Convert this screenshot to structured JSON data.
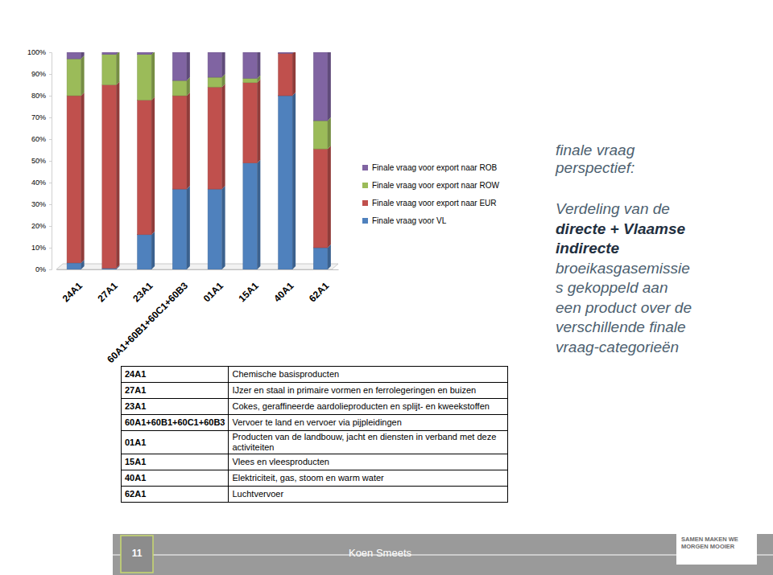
{
  "chart_data": {
    "type": "bar",
    "stacked": true,
    "grid": false,
    "legend": "right",
    "categories": [
      "24A1",
      "27A1",
      "23A1",
      "60A1+60B1+60C1+60B3",
      "01A1",
      "15A1",
      "40A1",
      "62A1"
    ],
    "series": [
      {
        "name": "Finale vraag voor VL",
        "color": "#4f81bd",
        "values": [
          3,
          0.5,
          16,
          37,
          37,
          49,
          80,
          10
        ]
      },
      {
        "name": "Finale vraag voor export naar EUR",
        "color": "#c0504d",
        "values": [
          77,
          84.5,
          62,
          43,
          47,
          37,
          19.5,
          45.5
        ]
      },
      {
        "name": "Finale vraag voor export naar ROW",
        "color": "#9bbb59",
        "values": [
          17,
          14,
          21,
          7,
          4.5,
          2,
          0,
          13
        ]
      },
      {
        "name": "Finale vraag voor export naar ROB",
        "color": "#8064a2",
        "values": [
          3,
          1,
          1,
          13,
          11.5,
          12,
          0.5,
          31.5
        ]
      }
    ],
    "ylim": [
      0,
      100
    ],
    "yticks": [
      {
        "value": 0,
        "label": "0%"
      },
      {
        "value": 10,
        "label": "10%"
      },
      {
        "value": 20,
        "label": "20%"
      },
      {
        "value": 30,
        "label": "30%"
      },
      {
        "value": 40,
        "label": "40%"
      },
      {
        "value": 50,
        "label": "50%"
      },
      {
        "value": 60,
        "label": "60%"
      },
      {
        "value": 70,
        "label": "70%"
      },
      {
        "value": 80,
        "label": "80%"
      },
      {
        "value": 90,
        "label": "90%"
      },
      {
        "value": 100,
        "label": "100%"
      }
    ]
  },
  "side_text": {
    "heading": [
      "finale vraag",
      "perspectief:"
    ],
    "lines": [
      {
        "text": "Verdeling van de",
        "bold": false
      },
      {
        "text": "directe + Vlaamse",
        "bold": true
      },
      {
        "text": "indirecte",
        "bold": true
      },
      {
        "text": "broeikasgasemissie",
        "bold": false
      },
      {
        "text": "s gekoppeld aan",
        "bold": false
      },
      {
        "text": "een product over de",
        "bold": false
      },
      {
        "text": "verschillende finale",
        "bold": false
      },
      {
        "text": "vraag-categorieën",
        "bold": false
      }
    ]
  },
  "table": {
    "rows": [
      [
        "24A1",
        "Chemische basisproducten"
      ],
      [
        "27A1",
        "IJzer en staal in primaire vormen en ferrolegeringen en buizen"
      ],
      [
        "23A1",
        "Cokes, geraffineerde aardolieproducten en splijt- en kweekstoffen"
      ],
      [
        "60A1+60B1+60C1+60B3",
        "Vervoer te land en vervoer via pijpleidingen"
      ],
      [
        "01A1",
        "Producten van de landbouw, jacht en diensten in verband met deze activiteiten"
      ],
      [
        "15A1",
        "Vlees en vleesproducten"
      ],
      [
        "40A1",
        "Elektriciteit, gas, stoom en warm water"
      ],
      [
        "62A1",
        "Luchtvervoer"
      ]
    ]
  },
  "footer": {
    "page_number": 11,
    "author": "Koen Smeets",
    "logo": [
      "SAMEN MAKEN WE",
      "MORGEN MOOIER"
    ]
  }
}
